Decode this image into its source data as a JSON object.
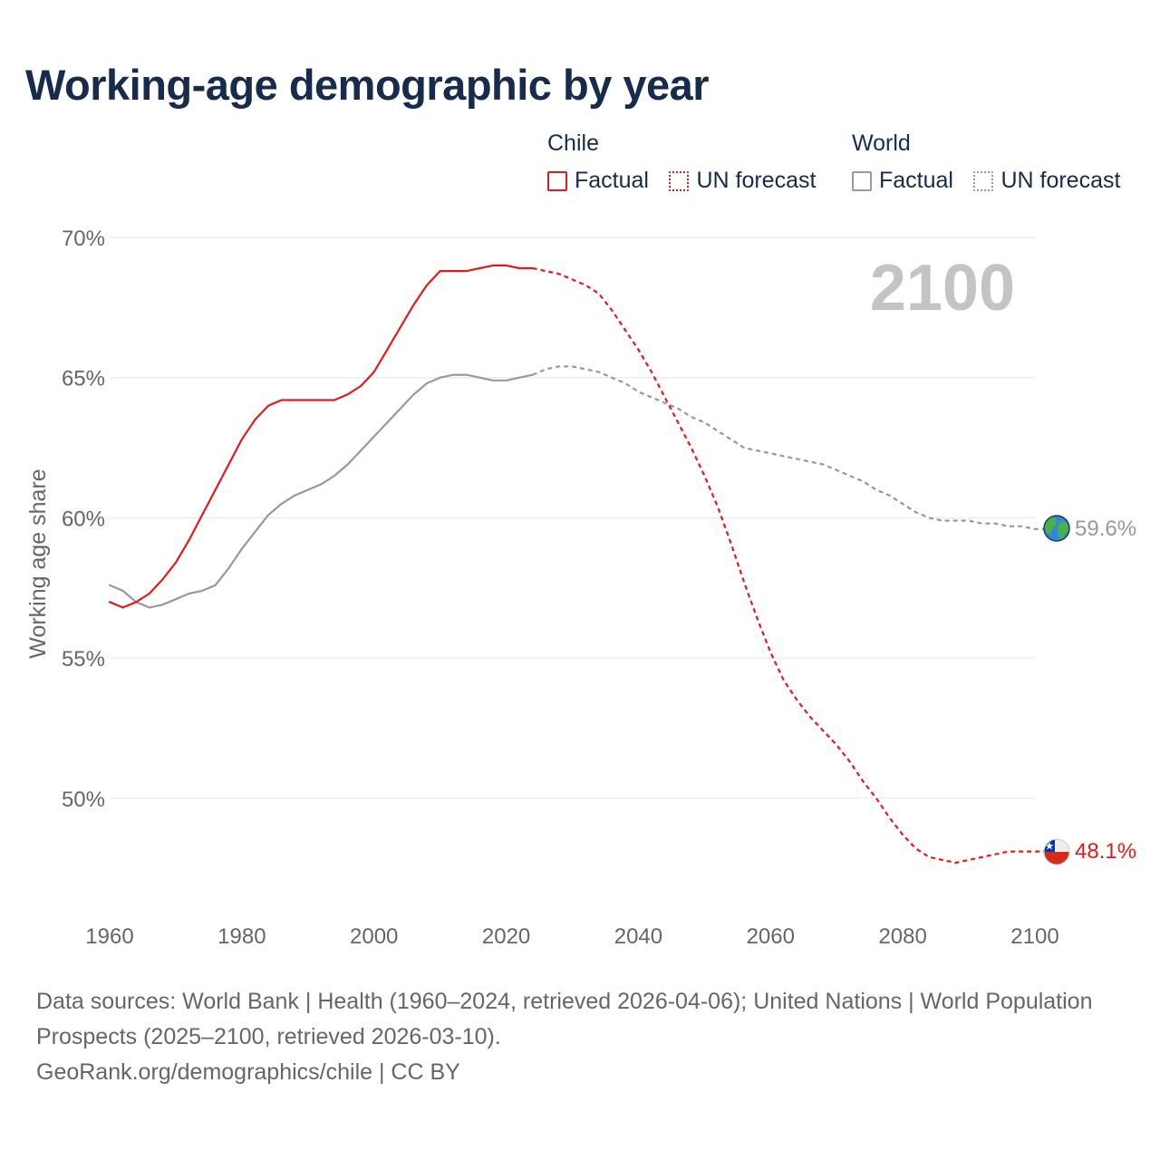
{
  "title": "Working-age demographic by year",
  "legend": {
    "groups": [
      {
        "name": "Chile",
        "items": [
          "Factual",
          "UN forecast"
        ]
      },
      {
        "name": "World",
        "items": [
          "Factual",
          "UN forecast"
        ]
      }
    ]
  },
  "year_watermark": "2100",
  "colors": {
    "chile": "#e31a1c",
    "world": "#999999",
    "title": "#172b4d",
    "watermark": "#c4c4c4"
  },
  "icons": {
    "world": "globe-icon",
    "chile": "chile-flag-icon"
  },
  "chart_data": {
    "type": "line",
    "ylabel": "Working age share",
    "xlabel": "",
    "xlim": [
      1960,
      2100
    ],
    "ylim": [
      45.6,
      70
    ],
    "x_ticks": [
      1960,
      1980,
      2000,
      2020,
      2040,
      2060,
      2080,
      2100
    ],
    "x_tick_labels": [
      "1960",
      "1980",
      "2000",
      "2020",
      "2040",
      "2060",
      "2080",
      "2100"
    ],
    "y_ticks": [
      50,
      55,
      60,
      65,
      70
    ],
    "y_tick_labels": [
      "50%",
      "55%",
      "60%",
      "65%",
      "70%"
    ],
    "series": [
      {
        "name": "Chile",
        "factual": {
          "x": [
            1960,
            1962,
            1964,
            1966,
            1968,
            1970,
            1972,
            1974,
            1976,
            1978,
            1980,
            1982,
            1984,
            1986,
            1988,
            1990,
            1992,
            1994,
            1996,
            1998,
            2000,
            2002,
            2004,
            2006,
            2008,
            2010,
            2012,
            2014,
            2016,
            2018,
            2020,
            2022,
            2024
          ],
          "y": [
            57.0,
            56.8,
            57.0,
            57.3,
            57.8,
            58.4,
            59.2,
            60.1,
            61.0,
            61.9,
            62.8,
            63.5,
            64.0,
            64.2,
            64.2,
            64.2,
            64.2,
            64.2,
            64.4,
            64.7,
            65.2,
            66.0,
            66.8,
            67.6,
            68.3,
            68.8,
            68.8,
            68.8,
            68.9,
            69.0,
            69.0,
            68.9,
            68.9
          ]
        },
        "forecast": {
          "x": [
            2024,
            2026,
            2028,
            2030,
            2032,
            2034,
            2036,
            2038,
            2040,
            2042,
            2044,
            2046,
            2048,
            2050,
            2052,
            2054,
            2056,
            2058,
            2060,
            2062,
            2064,
            2066,
            2068,
            2070,
            2072,
            2074,
            2076,
            2078,
            2080,
            2082,
            2084,
            2086,
            2088,
            2090,
            2092,
            2094,
            2096,
            2098,
            2100
          ],
          "y": [
            68.9,
            68.8,
            68.7,
            68.5,
            68.3,
            68.0,
            67.4,
            66.7,
            66.0,
            65.2,
            64.3,
            63.4,
            62.5,
            61.5,
            60.4,
            59.1,
            57.7,
            56.4,
            55.2,
            54.2,
            53.5,
            52.9,
            52.4,
            51.9,
            51.3,
            50.6,
            50.0,
            49.3,
            48.7,
            48.2,
            47.9,
            47.8,
            47.7,
            47.8,
            47.9,
            48.0,
            48.1,
            48.1,
            48.1
          ]
        },
        "end_label": "48.1%"
      },
      {
        "name": "World",
        "factual": {
          "x": [
            1960,
            1962,
            1964,
            1966,
            1968,
            1970,
            1972,
            1974,
            1976,
            1978,
            1980,
            1982,
            1984,
            1986,
            1988,
            1990,
            1992,
            1994,
            1996,
            1998,
            2000,
            2002,
            2004,
            2006,
            2008,
            2010,
            2012,
            2014,
            2016,
            2018,
            2020,
            2022,
            2024
          ],
          "y": [
            57.6,
            57.4,
            57.0,
            56.8,
            56.9,
            57.1,
            57.3,
            57.4,
            57.6,
            58.2,
            58.9,
            59.5,
            60.1,
            60.5,
            60.8,
            61.0,
            61.2,
            61.5,
            61.9,
            62.4,
            62.9,
            63.4,
            63.9,
            64.4,
            64.8,
            65.0,
            65.1,
            65.1,
            65.0,
            64.9,
            64.9,
            65.0,
            65.1
          ]
        },
        "forecast": {
          "x": [
            2024,
            2026,
            2028,
            2030,
            2032,
            2034,
            2036,
            2038,
            2040,
            2042,
            2044,
            2046,
            2048,
            2050,
            2052,
            2054,
            2056,
            2058,
            2060,
            2062,
            2064,
            2066,
            2068,
            2070,
            2072,
            2074,
            2076,
            2078,
            2080,
            2082,
            2084,
            2086,
            2088,
            2090,
            2092,
            2094,
            2096,
            2098,
            2100
          ],
          "y": [
            65.1,
            65.3,
            65.4,
            65.4,
            65.3,
            65.2,
            65.0,
            64.8,
            64.5,
            64.3,
            64.1,
            63.9,
            63.6,
            63.4,
            63.1,
            62.8,
            62.5,
            62.4,
            62.3,
            62.2,
            62.1,
            62.0,
            61.9,
            61.7,
            61.5,
            61.3,
            61.0,
            60.8,
            60.5,
            60.2,
            60.0,
            59.9,
            59.9,
            59.9,
            59.8,
            59.8,
            59.7,
            59.7,
            59.6
          ]
        },
        "end_label": "59.6%"
      }
    ]
  },
  "footer": {
    "source_line": "Data sources: World Bank | Health (1960–2024, retrieved 2026-04-06); United Nations | World Population Prospects (2025–2100, retrieved 2026-03-10).",
    "credit_line": "GeoRank.org/demographics/chile | CC BY"
  }
}
